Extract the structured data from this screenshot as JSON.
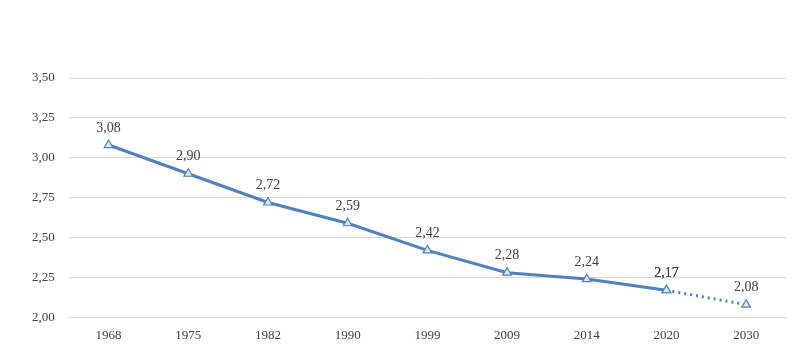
{
  "chart_data": {
    "type": "line",
    "categories": [
      "1968",
      "1975",
      "1982",
      "1990",
      "1999",
      "2009",
      "2014",
      "2020",
      "2030"
    ],
    "series": [
      {
        "color": "#4f81bd",
        "line_style": "solid",
        "marker": "triangle",
        "values": [
          3.08,
          2.9,
          2.72,
          2.59,
          2.42,
          2.28,
          2.24,
          2.17,
          null
        ],
        "value_labels": [
          "3,08",
          "2,90",
          "2,72",
          "2,59",
          "2,42",
          "2,28",
          "2,24",
          "2,17",
          null
        ]
      },
      {
        "color": "#4f81bd",
        "line_style": "dotted",
        "marker": "triangle",
        "values": [
          null,
          null,
          null,
          null,
          null,
          null,
          null,
          2.17,
          2.08
        ],
        "value_labels": [
          null,
          null,
          null,
          null,
          null,
          null,
          null,
          "2,17",
          "2,08"
        ]
      }
    ],
    "ylim": [
      2,
      3.5
    ],
    "yticks": [
      {
        "value": 2,
        "label": "2,00"
      },
      {
        "value": 2.25,
        "label": "2,25"
      },
      {
        "value": 2.5,
        "label": "2,50"
      },
      {
        "value": 2.75,
        "label": "2,75"
      },
      {
        "value": 3,
        "label": "3,00"
      },
      {
        "value": 3.25,
        "label": "3,25"
      },
      {
        "value": 3.5,
        "label": "3,50"
      }
    ],
    "grid": true,
    "data_labels": true,
    "legend": null
  }
}
